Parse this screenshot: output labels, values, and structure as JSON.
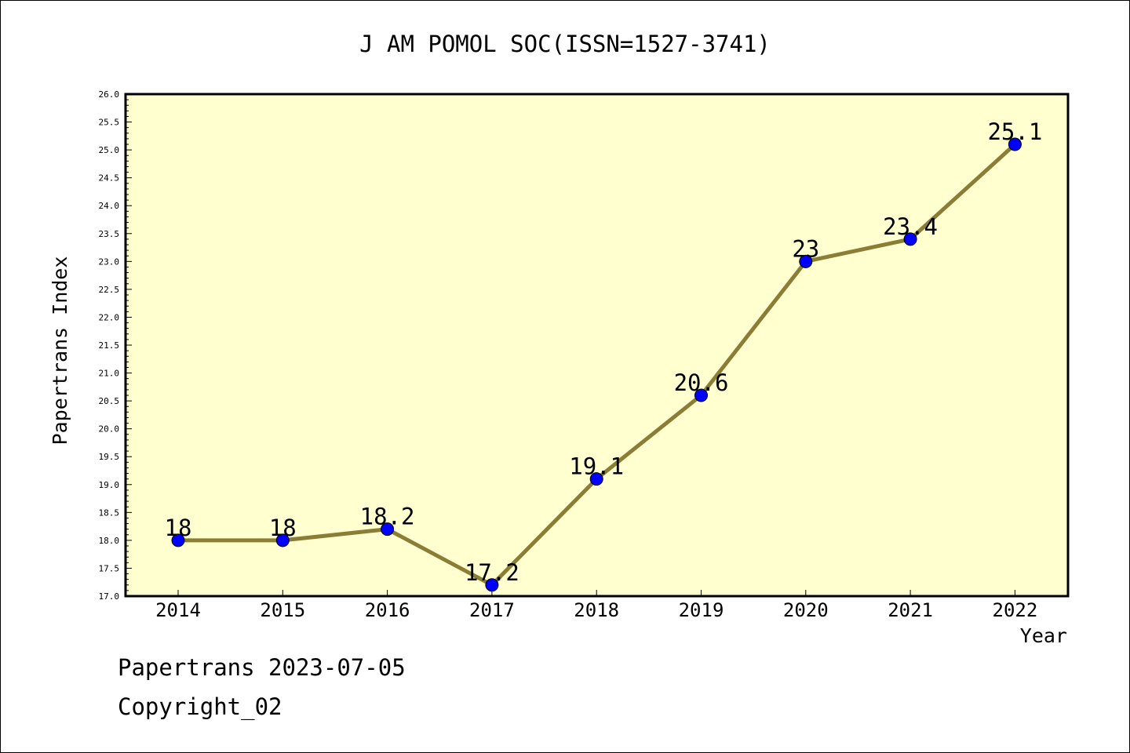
{
  "chart_data": {
    "type": "line",
    "title": "J AM POMOL SOC(ISSN=1527-3741)",
    "xlabel": "Year",
    "ylabel": "Papertrans Index",
    "categories": [
      "2014",
      "2015",
      "2016",
      "2017",
      "2018",
      "2019",
      "2020",
      "2021",
      "2022"
    ],
    "values": [
      18,
      18,
      18.2,
      17.2,
      19.1,
      20.6,
      23,
      23.4,
      25.1
    ],
    "data_labels": [
      "18",
      "18",
      "18.2",
      "17.2",
      "19.1",
      "20.6",
      "23",
      "23.4",
      "25.1"
    ],
    "ylim": [
      17.0,
      26.0
    ],
    "yticks": [
      "17.0",
      "17.5",
      "18.0",
      "18.5",
      "19.0",
      "19.5",
      "20.0",
      "20.5",
      "21.0",
      "21.5",
      "22.0",
      "22.5",
      "23.0",
      "23.5",
      "24.0",
      "24.5",
      "25.0",
      "25.5",
      "26.0"
    ],
    "grid": false,
    "colors": {
      "plot_background": "#ffffd0",
      "line": "#8b7d35",
      "marker": "#0000ff"
    }
  },
  "footer": {
    "line1": "Papertrans 2023-07-05",
    "line2": "Copyright_02"
  }
}
